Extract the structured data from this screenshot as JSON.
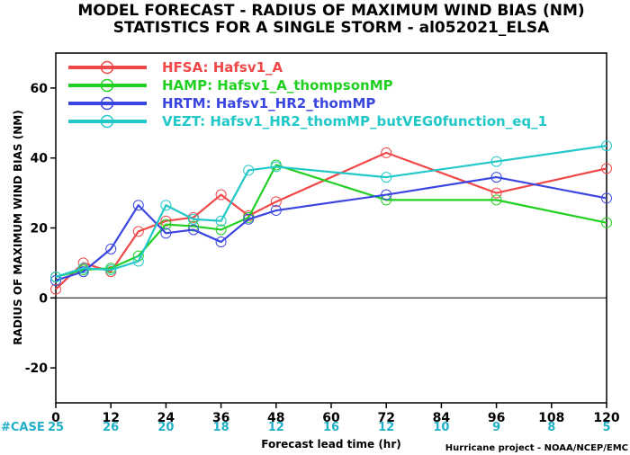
{
  "chart_data": {
    "type": "line",
    "title_line1": "MODEL FORECAST - RADIUS OF MAXIMUM WIND BIAS (NM)",
    "title_line2": "STATISTICS FOR A SINGLE STORM - al052021_ELSA",
    "xlabel": "Forecast lead time (hr)",
    "ylabel": "RADIUS OF MAXIMUM WIND BIAS (NM)",
    "credit": "Hurricane project - NOAA/NCEP/EMC",
    "xlim": [
      0,
      120
    ],
    "ylim": [
      -30,
      70
    ],
    "x_ticks": [
      0,
      12,
      24,
      36,
      48,
      60,
      72,
      84,
      96,
      108,
      120
    ],
    "y_ticks": [
      -20,
      0,
      20,
      40,
      60
    ],
    "zero_line": true,
    "case_label": "#CASE",
    "case_color": "#22b0c8",
    "cases": [
      {
        "x": 0,
        "n": "25"
      },
      {
        "x": 12,
        "n": "26"
      },
      {
        "x": 24,
        "n": "20"
      },
      {
        "x": 36,
        "n": "18"
      },
      {
        "x": 48,
        "n": "12"
      },
      {
        "x": 60,
        "n": "16"
      },
      {
        "x": 72,
        "n": "12"
      },
      {
        "x": 84,
        "n": "10"
      },
      {
        "x": 96,
        "n": "9"
      },
      {
        "x": 108,
        "n": "8"
      },
      {
        "x": 120,
        "n": "5"
      }
    ],
    "legend_position": "top-left",
    "series": [
      {
        "name": "HFSA:  Hafsv1_A",
        "color": "#f04848",
        "x": [
          0,
          6,
          12,
          18,
          24,
          30,
          36,
          42,
          48,
          72,
          96,
          120
        ],
        "y": [
          2.5,
          10,
          7.5,
          19,
          22,
          23,
          29.5,
          23.5,
          27.5,
          41.5,
          30,
          37
        ]
      },
      {
        "name": "HAMP:  Hafsv1_A_thompsonMP",
        "color": "#22d022",
        "x": [
          0,
          6,
          12,
          18,
          24,
          30,
          36,
          42,
          48,
          72,
          96,
          120
        ],
        "y": [
          6,
          8,
          8.5,
          12,
          21,
          20.5,
          19.5,
          23,
          38,
          28,
          28,
          21.5
        ]
      },
      {
        "name": "HRTM:  Hafsv1_HR2_thomMP",
        "color": "#3a46e0",
        "x": [
          0,
          6,
          12,
          18,
          24,
          30,
          36,
          42,
          48,
          72,
          96,
          120
        ],
        "y": [
          5,
          7.5,
          14,
          26.5,
          18.5,
          19.5,
          16,
          22.5,
          25,
          29.5,
          34.5,
          28.5
        ]
      },
      {
        "name": "VEZT:  Hafsv1_HR2_thomMP_butVEG0function_eq_1",
        "color": "#22c8c8",
        "x": [
          0,
          6,
          12,
          18,
          24,
          30,
          36,
          42,
          48,
          72,
          96,
          120
        ],
        "y": [
          6,
          8.5,
          8,
          10.5,
          26.5,
          22.5,
          22,
          36.5,
          37.5,
          34.5,
          39,
          43.5
        ]
      }
    ]
  }
}
